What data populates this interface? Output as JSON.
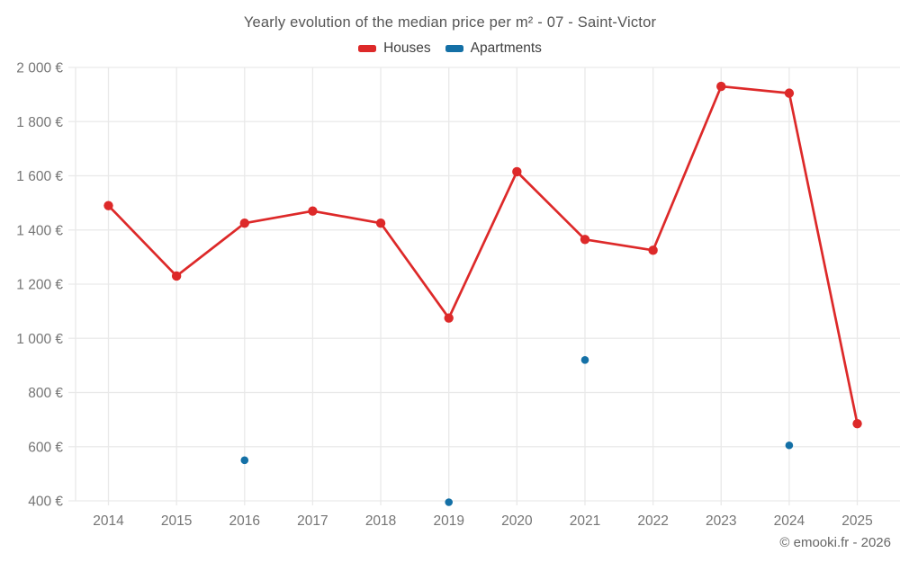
{
  "footer": {
    "copyright": "© emooki.fr - 2026"
  },
  "colors": {
    "houses": "#dd2929",
    "apartments": "#1470a6",
    "grid": "#e9e9e9",
    "tick_text": "#757575",
    "title_text": "#555555"
  },
  "chart_data": {
    "type": "line",
    "title": "Yearly evolution of the median price per m² - 07 - Saint-Victor",
    "xlabel": "",
    "ylabel": "",
    "ylim": [
      400,
      2000
    ],
    "grid": true,
    "legend_position": "top",
    "categories": [
      "2014",
      "2015",
      "2016",
      "2017",
      "2018",
      "2019",
      "2020",
      "2021",
      "2022",
      "2023",
      "2024",
      "2025"
    ],
    "yticks": [
      [
        400,
        "400 €"
      ],
      [
        600,
        "600 €"
      ],
      [
        800,
        "800 €"
      ],
      [
        1000,
        "1 000 €"
      ],
      [
        1200,
        "1 200 €"
      ],
      [
        1400,
        "1 400 €"
      ],
      [
        1600,
        "1 600 €"
      ],
      [
        1800,
        "1 800 €"
      ],
      [
        2000,
        "2 000 €"
      ]
    ],
    "series": [
      {
        "name": "Houses",
        "draw": "line-markers",
        "color": "#dd2929",
        "values": [
          1490,
          1230,
          1425,
          1470,
          1425,
          1075,
          1615,
          1365,
          1325,
          1930,
          1905,
          685
        ]
      },
      {
        "name": "Apartments",
        "draw": "markers",
        "color": "#1470a6",
        "values": [
          null,
          null,
          550,
          null,
          null,
          395,
          null,
          920,
          null,
          null,
          605,
          null
        ]
      }
    ]
  }
}
